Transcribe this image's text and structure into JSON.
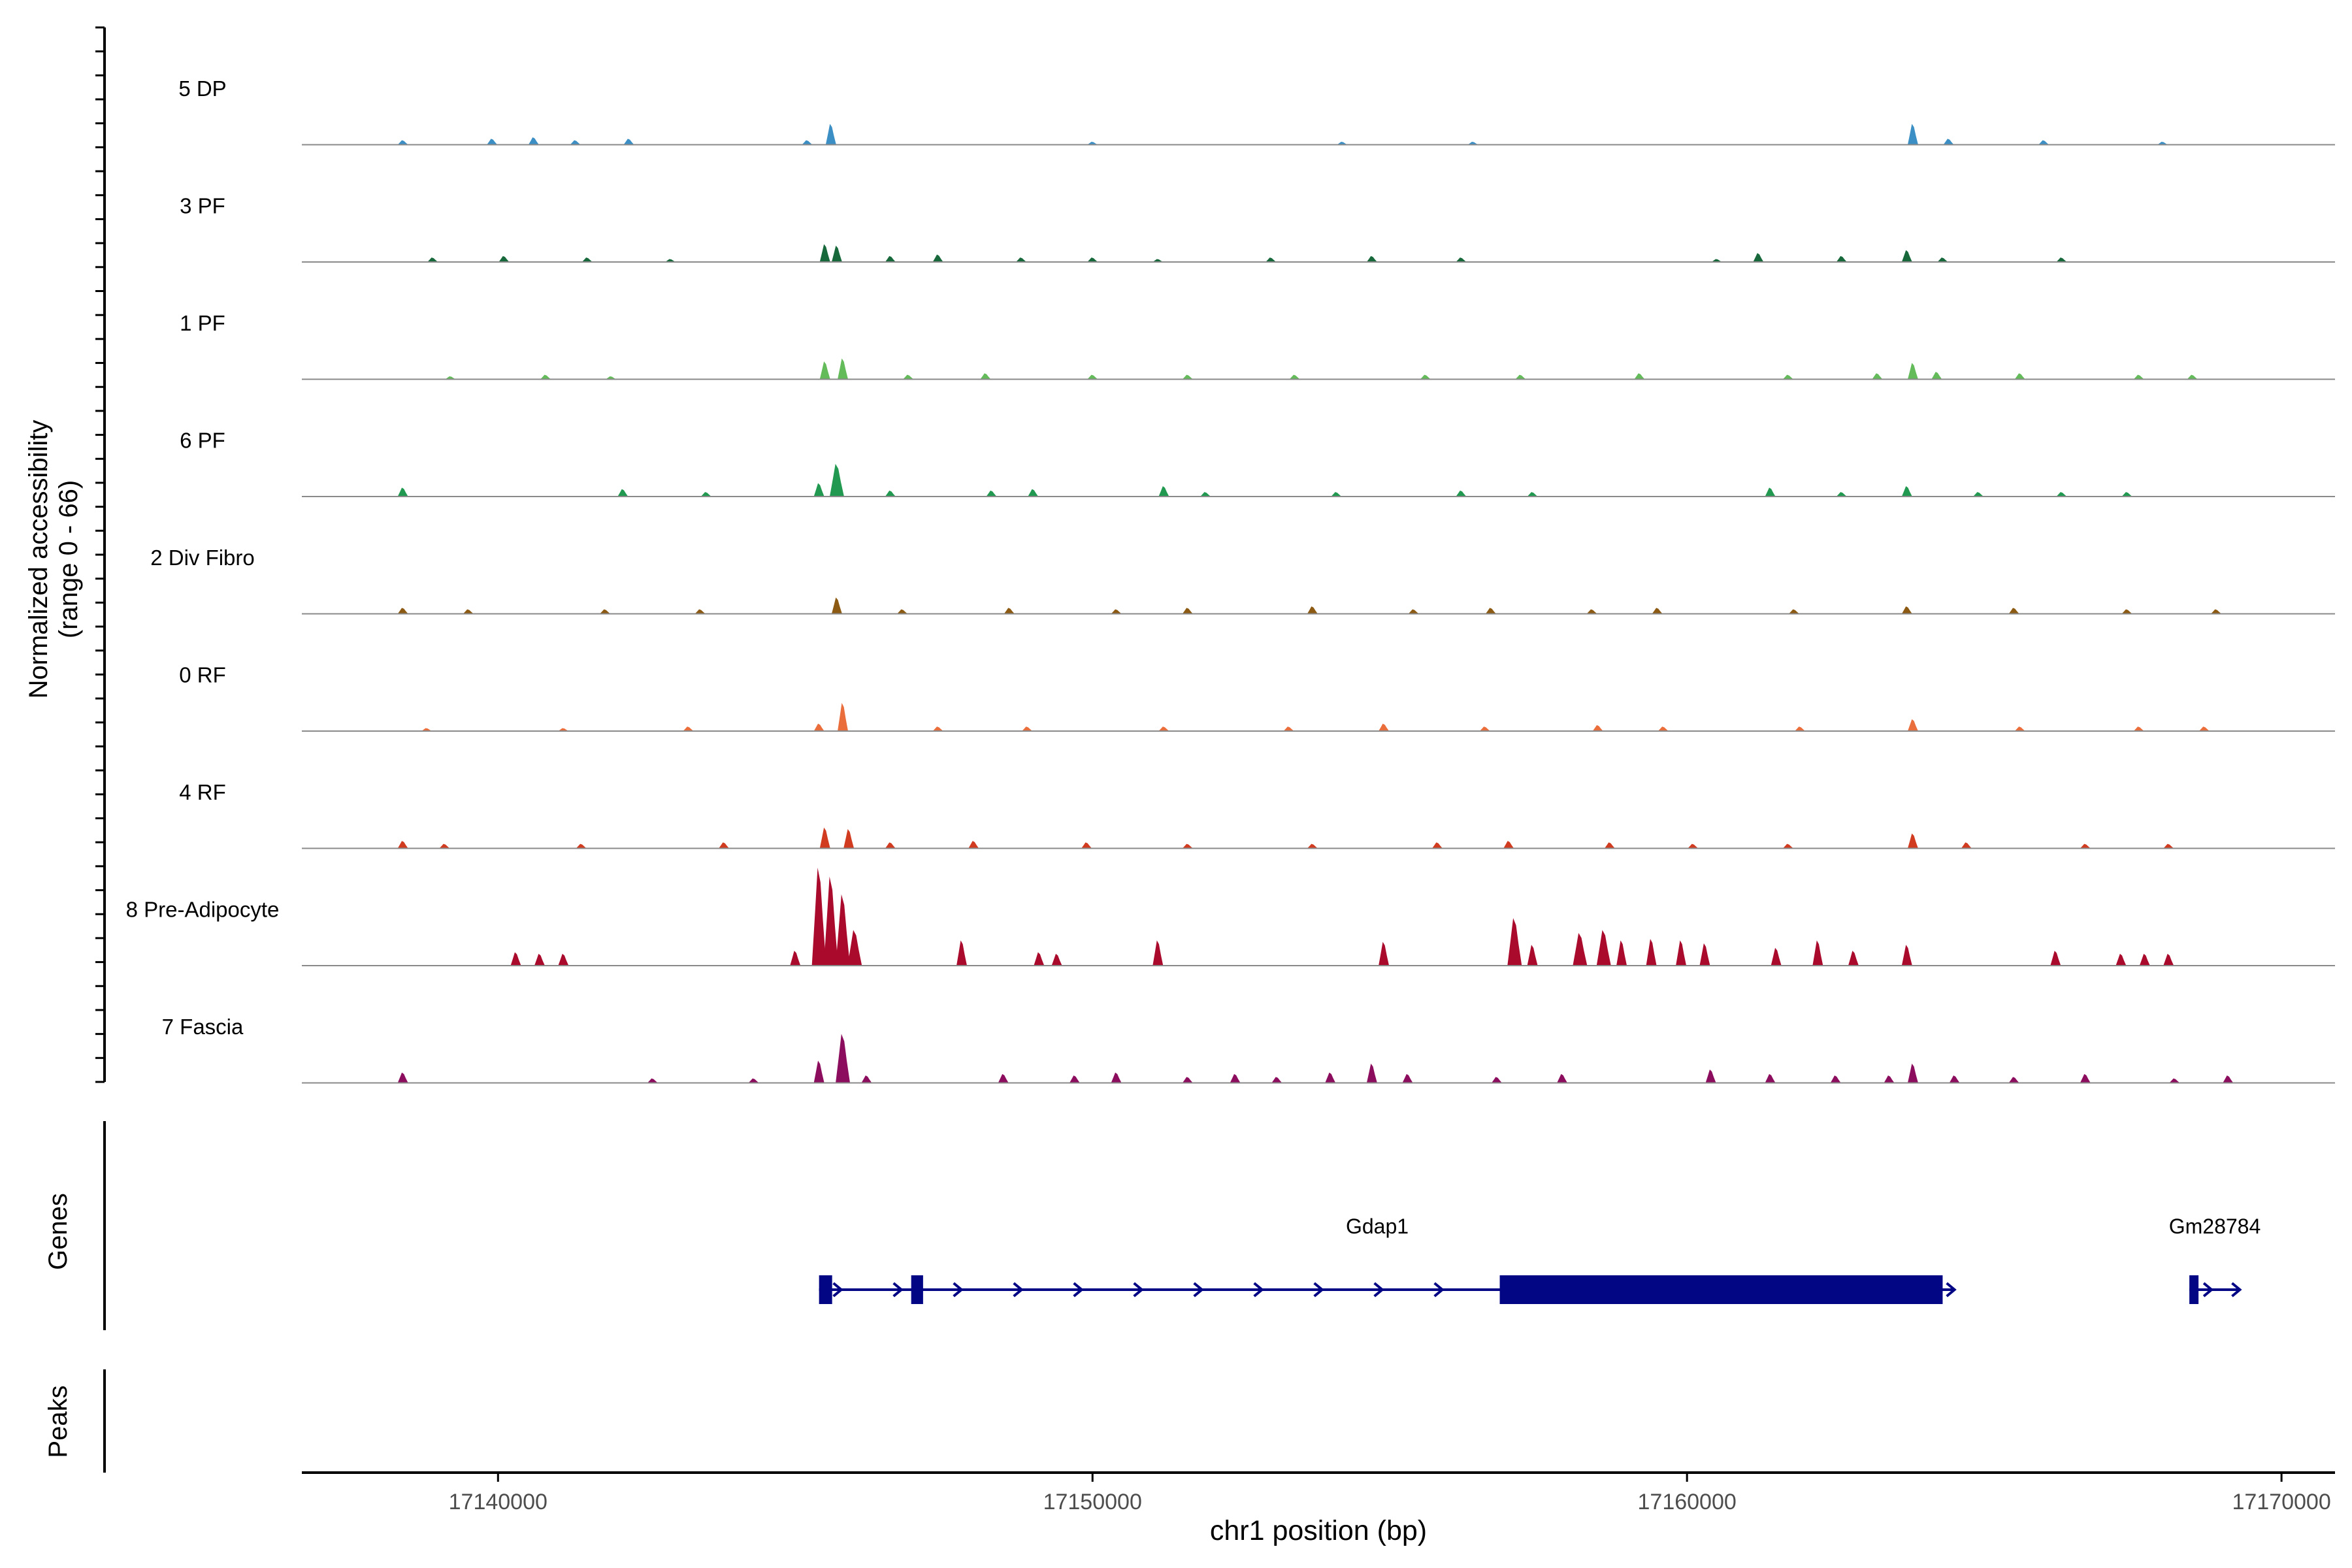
{
  "chart_data": {
    "type": "area",
    "title": "",
    "ylabel_line1": "Normalized accessibility",
    "ylabel_line2": "(range 0 - 66)",
    "xlabel": "chr1 position (bp)",
    "xlim": [
      17136700,
      17170900
    ],
    "ylim": [
      0,
      66
    ],
    "x_ticks": [
      {
        "value": 17140000,
        "label": "17140000"
      },
      {
        "value": 17150000,
        "label": "17150000"
      },
      {
        "value": 17160000,
        "label": "17160000"
      },
      {
        "value": 17170000,
        "label": "17170000"
      }
    ],
    "tracks": [
      {
        "name": "5 DP",
        "color": "#3b8fc4",
        "peaks": [
          [
            17138400,
            3
          ],
          [
            17139900,
            4
          ],
          [
            17140600,
            5
          ],
          [
            17141300,
            3
          ],
          [
            17142200,
            4
          ],
          [
            17145200,
            3
          ],
          [
            17145600,
            14
          ],
          [
            17150000,
            2
          ],
          [
            17154200,
            2
          ],
          [
            17156400,
            2
          ],
          [
            17163800,
            14
          ],
          [
            17164400,
            4
          ],
          [
            17166000,
            3
          ],
          [
            17168000,
            2
          ]
        ]
      },
      {
        "name": "3 PF",
        "color": "#17693b",
        "peaks": [
          [
            17138900,
            3
          ],
          [
            17140100,
            4
          ],
          [
            17141500,
            3
          ],
          [
            17142900,
            2
          ],
          [
            17145500,
            12
          ],
          [
            17145700,
            11
          ],
          [
            17146600,
            4
          ],
          [
            17147400,
            5
          ],
          [
            17148800,
            3
          ],
          [
            17150000,
            3
          ],
          [
            17151100,
            2
          ],
          [
            17153000,
            3
          ],
          [
            17154700,
            4
          ],
          [
            17156200,
            3
          ],
          [
            17160500,
            2
          ],
          [
            17161200,
            6
          ],
          [
            17162600,
            4
          ],
          [
            17163700,
            8
          ],
          [
            17164300,
            3
          ],
          [
            17166300,
            3
          ]
        ]
      },
      {
        "name": "1 PF",
        "color": "#63bb5a",
        "peaks": [
          [
            17139200,
            2
          ],
          [
            17140800,
            3
          ],
          [
            17141900,
            2
          ],
          [
            17145500,
            12
          ],
          [
            17145800,
            14
          ],
          [
            17146900,
            3
          ],
          [
            17148200,
            4
          ],
          [
            17150000,
            3
          ],
          [
            17151600,
            3
          ],
          [
            17153400,
            3
          ],
          [
            17155600,
            3
          ],
          [
            17157200,
            3
          ],
          [
            17159200,
            4
          ],
          [
            17161700,
            3
          ],
          [
            17163200,
            4
          ],
          [
            17163800,
            11
          ],
          [
            17164200,
            5
          ],
          [
            17165600,
            4
          ],
          [
            17167600,
            3
          ],
          [
            17168500,
            3
          ]
        ]
      },
      {
        "name": "6 PF",
        "color": "#229950",
        "peaks": [
          [
            17138400,
            6
          ],
          [
            17142100,
            5
          ],
          [
            17143500,
            3
          ],
          [
            17145400,
            9
          ],
          [
            17145700,
            22
          ],
          [
            17146600,
            4
          ],
          [
            17148300,
            4
          ],
          [
            17149000,
            5
          ],
          [
            17151200,
            7
          ],
          [
            17151900,
            3
          ],
          [
            17154100,
            3
          ],
          [
            17156200,
            4
          ],
          [
            17157400,
            3
          ],
          [
            17161400,
            6
          ],
          [
            17162600,
            3
          ],
          [
            17163700,
            7
          ],
          [
            17164900,
            3
          ],
          [
            17166300,
            3
          ],
          [
            17167400,
            3
          ]
        ]
      },
      {
        "name": "2 Div Fibro",
        "color": "#8c5a12",
        "peaks": [
          [
            17138400,
            4
          ],
          [
            17139500,
            3
          ],
          [
            17141800,
            3
          ],
          [
            17143400,
            3
          ],
          [
            17145700,
            11
          ],
          [
            17146800,
            3
          ],
          [
            17148600,
            4
          ],
          [
            17150400,
            3
          ],
          [
            17151600,
            4
          ],
          [
            17153700,
            5
          ],
          [
            17155400,
            3
          ],
          [
            17156700,
            4
          ],
          [
            17158400,
            3
          ],
          [
            17159500,
            4
          ],
          [
            17161800,
            3
          ],
          [
            17163700,
            5
          ],
          [
            17165500,
            4
          ],
          [
            17167400,
            3
          ],
          [
            17168900,
            3
          ]
        ]
      },
      {
        "name": "0 RF",
        "color": "#ea6d3c",
        "peaks": [
          [
            17138800,
            2
          ],
          [
            17141100,
            2
          ],
          [
            17143200,
            3
          ],
          [
            17145400,
            5
          ],
          [
            17145800,
            19
          ],
          [
            17147400,
            3
          ],
          [
            17148900,
            3
          ],
          [
            17151200,
            3
          ],
          [
            17153300,
            3
          ],
          [
            17154900,
            5
          ],
          [
            17156600,
            3
          ],
          [
            17158500,
            4
          ],
          [
            17159600,
            3
          ],
          [
            17161900,
            3
          ],
          [
            17163800,
            8
          ],
          [
            17165600,
            3
          ],
          [
            17167600,
            3
          ],
          [
            17168700,
            3
          ]
        ]
      },
      {
        "name": "4 RF",
        "color": "#d13c20",
        "peaks": [
          [
            17138400,
            5
          ],
          [
            17139100,
            3
          ],
          [
            17141400,
            3
          ],
          [
            17143800,
            4
          ],
          [
            17145500,
            14
          ],
          [
            17145900,
            13
          ],
          [
            17146600,
            4
          ],
          [
            17148000,
            5
          ],
          [
            17149900,
            4
          ],
          [
            17151600,
            3
          ],
          [
            17153700,
            3
          ],
          [
            17155800,
            4
          ],
          [
            17157000,
            5
          ],
          [
            17158700,
            4
          ],
          [
            17160100,
            3
          ],
          [
            17161700,
            3
          ],
          [
            17163800,
            10
          ],
          [
            17164700,
            4
          ],
          [
            17166700,
            3
          ],
          [
            17168100,
            3
          ]
        ]
      },
      {
        "name": "8 Pre-Adipocyte",
        "color": "#aa0a2c",
        "peaks": [
          [
            17140300,
            9
          ],
          [
            17140700,
            8
          ],
          [
            17141100,
            8
          ],
          [
            17145000,
            10
          ],
          [
            17145400,
            66
          ],
          [
            17145600,
            60
          ],
          [
            17145800,
            48
          ],
          [
            17146000,
            24
          ],
          [
            17147800,
            17
          ],
          [
            17149100,
            9
          ],
          [
            17149400,
            8
          ],
          [
            17151100,
            17
          ],
          [
            17154900,
            16
          ],
          [
            17157100,
            32
          ],
          [
            17157400,
            14
          ],
          [
            17158200,
            22
          ],
          [
            17158600,
            24
          ],
          [
            17158900,
            17
          ],
          [
            17159400,
            18
          ],
          [
            17159900,
            17
          ],
          [
            17160300,
            15
          ],
          [
            17161500,
            12
          ],
          [
            17162200,
            17
          ],
          [
            17162800,
            10
          ],
          [
            17163700,
            14
          ],
          [
            17166200,
            10
          ],
          [
            17167300,
            8
          ],
          [
            17167700,
            8
          ],
          [
            17168100,
            8
          ]
        ]
      },
      {
        "name": "7 Fascia",
        "color": "#8c0d5e",
        "peaks": [
          [
            17138400,
            7
          ],
          [
            17142600,
            3
          ],
          [
            17144300,
            3
          ],
          [
            17145400,
            15
          ],
          [
            17145800,
            33
          ],
          [
            17146200,
            5
          ],
          [
            17148500,
            6
          ],
          [
            17149700,
            5
          ],
          [
            17150400,
            7
          ],
          [
            17151600,
            4
          ],
          [
            17152400,
            6
          ],
          [
            17153100,
            4
          ],
          [
            17154000,
            7
          ],
          [
            17154700,
            13
          ],
          [
            17155300,
            6
          ],
          [
            17156800,
            4
          ],
          [
            17157900,
            6
          ],
          [
            17160400,
            9
          ],
          [
            17161400,
            6
          ],
          [
            17162500,
            5
          ],
          [
            17163400,
            5
          ],
          [
            17163800,
            13
          ],
          [
            17164500,
            5
          ],
          [
            17165500,
            4
          ],
          [
            17166700,
            6
          ],
          [
            17168200,
            3
          ],
          [
            17169100,
            5
          ]
        ]
      }
    ],
    "genes_label": "Genes",
    "peaks_label": "Peaks",
    "genes": [
      {
        "name": "Gdap1",
        "start": 17145400,
        "end": 17164500,
        "color": "#020684",
        "exons": [
          [
            17145400,
            17145620
          ],
          [
            17146950,
            17147150
          ]
        ],
        "thick": [
          17156850,
          17164300
        ]
      },
      {
        "name": "Gm28784",
        "start": 17168450,
        "end": 17169300,
        "color": "#020684",
        "exons": [
          [
            17168450,
            17168560
          ]
        ],
        "thick": null
      }
    ]
  }
}
